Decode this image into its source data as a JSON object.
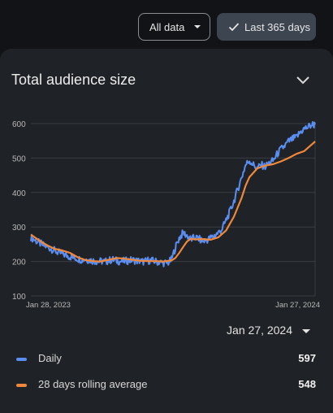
{
  "toolbar": {
    "all_data_label": "All data",
    "last_days_label": "Last 365 days"
  },
  "card": {
    "title": "Total audience size"
  },
  "chart_data": {
    "type": "line",
    "title": "Total audience size",
    "xlabel": "",
    "ylabel": "",
    "x_tick_labels": [
      "Jan 28, 2023",
      "Jan 27, 2024"
    ],
    "x_range": [
      "Jan 28, 2023",
      "Jan 27, 2024"
    ],
    "ylim": [
      100,
      600
    ],
    "y_ticks": [
      100,
      200,
      300,
      400,
      500,
      600
    ],
    "grid": true,
    "legend_position": "bottom",
    "series": [
      {
        "name": "Daily",
        "color": "#5b8ef0",
        "x_days": [
          0,
          5,
          10,
          15,
          20,
          25,
          30,
          35,
          40,
          45,
          50,
          55,
          60,
          65,
          70,
          75,
          80,
          85,
          90,
          95,
          100,
          105,
          110,
          115,
          120,
          125,
          130,
          135,
          140,
          145,
          150,
          155,
          160,
          165,
          170,
          175,
          180,
          185,
          190,
          195,
          200,
          205,
          210,
          215,
          220,
          225,
          230,
          235,
          240,
          245,
          250,
          255,
          260,
          265,
          270,
          275,
          280,
          285,
          290,
          295,
          300,
          305,
          310,
          315,
          320,
          325,
          330,
          335,
          340,
          345,
          350,
          355,
          360,
          364
        ],
        "values": [
          270,
          262,
          255,
          248,
          243,
          238,
          232,
          226,
          222,
          218,
          214,
          211,
          208,
          205,
          207,
          204,
          202,
          200,
          201,
          199,
          203,
          205,
          202,
          200,
          201,
          203,
          204,
          202,
          201,
          199,
          203,
          202,
          200,
          198,
          196,
          195,
          205,
          240,
          268,
          283,
          275,
          263,
          270,
          266,
          258,
          262,
          268,
          275,
          283,
          295,
          320,
          345,
          375,
          410,
          445,
          480,
          493,
          480,
          470,
          480,
          475,
          485,
          492,
          510,
          525,
          535,
          548,
          555,
          560,
          575,
          585,
          590,
          597,
          597
        ]
      },
      {
        "name": "28 days rolling average",
        "color": "#f0883c",
        "x_days": [
          0,
          10,
          20,
          30,
          40,
          50,
          60,
          70,
          80,
          90,
          100,
          110,
          120,
          130,
          140,
          150,
          160,
          170,
          180,
          185,
          190,
          195,
          200,
          205,
          210,
          220,
          230,
          240,
          250,
          260,
          270,
          275,
          280,
          290,
          300,
          310,
          320,
          330,
          340,
          350,
          360,
          364
        ],
        "values": [
          278,
          262,
          248,
          237,
          232,
          225,
          212,
          204,
          201,
          200,
          205,
          210,
          208,
          205,
          202,
          201,
          201,
          200,
          203,
          210,
          225,
          242,
          258,
          266,
          264,
          265,
          263,
          270,
          290,
          330,
          385,
          420,
          445,
          470,
          478,
          482,
          490,
          500,
          512,
          520,
          540,
          548
        ]
      }
    ]
  },
  "selection": {
    "date_label": "Jan 27, 2024"
  },
  "legend": [
    {
      "label": "Daily",
      "value": "597",
      "color": "#5b8ef0"
    },
    {
      "label": "28 days rolling average",
      "value": "548",
      "color": "#f0883c"
    }
  ]
}
